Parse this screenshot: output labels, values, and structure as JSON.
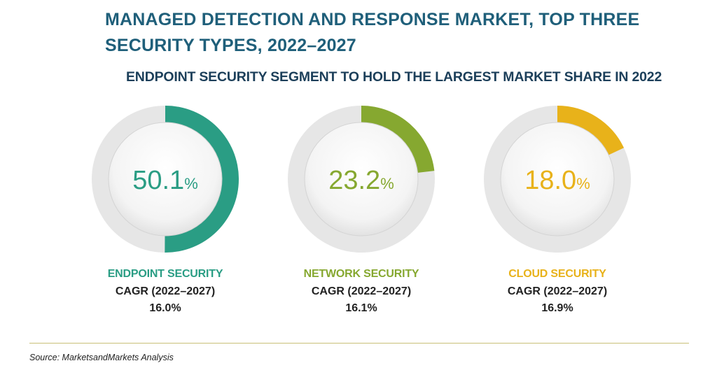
{
  "title": "MANAGED DETECTION AND RESPONSE MARKET, TOP THREE SECURITY TYPES, 2022–2027",
  "subtitle": "ENDPOINT SECURITY SEGMENT TO HOLD THE LARGEST MARKET SHARE IN 2022",
  "source": "Source: MarketsandMarkets Analysis",
  "colors": {
    "endpoint": "#2a9d84",
    "network": "#86a830",
    "cloud": "#e8b21a",
    "track": "#e6e6e6",
    "title": "#1f5f7a"
  },
  "chart_data": {
    "type": "pie",
    "title": "MANAGED DETECTION AND RESPONSE MARKET, TOP THREE SECURITY TYPES, 2022–2027",
    "subtitle": "ENDPOINT SECURITY SEGMENT TO HOLD THE LARGEST MARKET SHARE IN 2022",
    "items": [
      {
        "name": "ENDPOINT SECURITY",
        "share": 50.1,
        "share_text": "50.1",
        "unit": "%",
        "cagr_label": "CAGR (2022–2027)",
        "cagr": "16.0%"
      },
      {
        "name": "NETWORK SECURITY",
        "share": 23.2,
        "share_text": "23.2",
        "unit": "%",
        "cagr_label": "CAGR (2022–2027)",
        "cagr": "16.1%"
      },
      {
        "name": "CLOUD SECURITY",
        "share": 18.0,
        "share_text": "18.0",
        "unit": "%",
        "cagr_label": "CAGR (2022–2027)",
        "cagr": "16.9%"
      }
    ]
  }
}
